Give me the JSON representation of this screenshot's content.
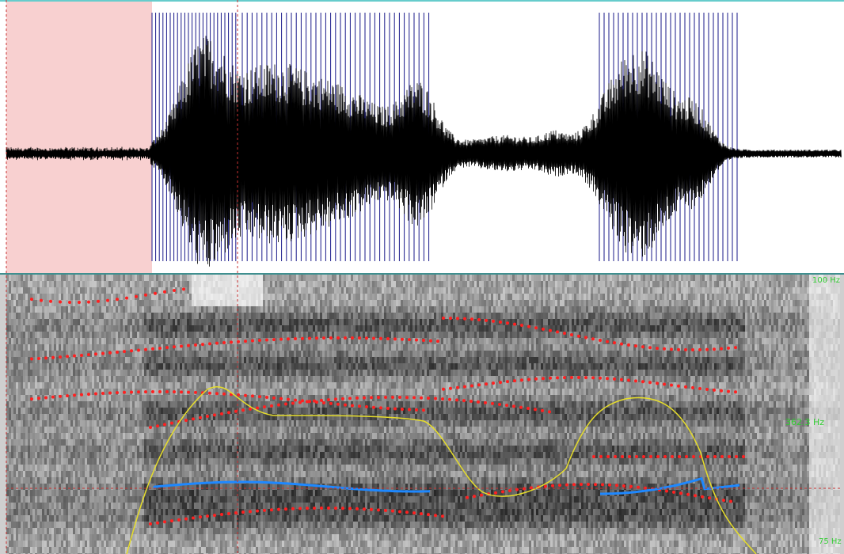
{
  "praat_view": {
    "spectrogram": {
      "freq_top_label": "100 Hz",
      "pitch_mark_label": "362.3 Hz",
      "freq_bottom_label": "75 Hz"
    }
  },
  "colors": {
    "selection": "#f8d0d0",
    "waveform": "#000000",
    "pulses": "#1a1a8a",
    "formants": "#ff2020",
    "pitch": "#1e88ff",
    "intensity": "#e6dd2a",
    "cursor": "#c83232",
    "axis_labels": "#33cc33"
  }
}
